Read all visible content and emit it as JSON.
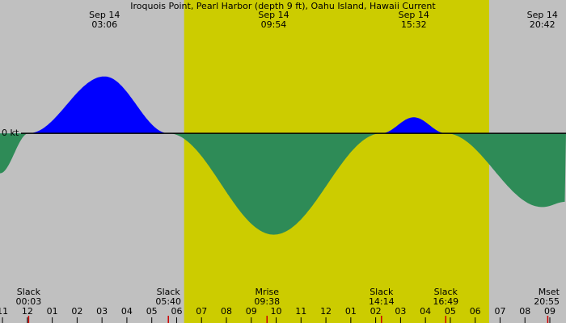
{
  "title": "Iroquois Point, Pearl Harbor (depth 9 ft), Oahu Island, Hawaii Current",
  "chart_data": {
    "type": "area",
    "zero_label": "0 kt",
    "xlim": [
      -1.1,
      21.65
    ],
    "ylim": [
      -1.68,
      1.5
    ],
    "edge_values": [
      -0.45,
      -0.77
    ],
    "daylight": [
      6.3,
      18.56
    ],
    "colors": {
      "background": "#c0c0c0",
      "daylight": "#cccc00",
      "flood": "#0000ff",
      "ebb": "#2e8b57",
      "event_tick": "#cc0000"
    },
    "peaks": [
      {
        "date": "Sep 14",
        "time": "03:06",
        "value": 0.64
      },
      {
        "date": "Sep 14",
        "time": "09:54",
        "value": -1.14
      },
      {
        "date": "Sep 14",
        "time": "15:32",
        "value": 0.18
      },
      {
        "date": "Sep 14",
        "time": "20:42",
        "value": -0.83
      }
    ],
    "slacks": [
      {
        "name": "Slack",
        "time": "00:03",
        "value": 0
      },
      {
        "name": "Slack",
        "time": "05:40",
        "value": 0
      },
      {
        "name": "Slack",
        "time": "14:14",
        "value": 0
      },
      {
        "name": "Slack",
        "time": "16:49",
        "value": 0
      }
    ],
    "moon": [
      {
        "name": "Mrise",
        "time": "09:38"
      },
      {
        "name": "Mset",
        "time": "20:55"
      }
    ],
    "xticks": [
      {
        "value": -1,
        "label": "11"
      },
      {
        "value": 0,
        "label": "12"
      },
      {
        "value": 1,
        "label": "01"
      },
      {
        "value": 2,
        "label": "02"
      },
      {
        "value": 3,
        "label": "03"
      },
      {
        "value": 4,
        "label": "04"
      },
      {
        "value": 5,
        "label": "05"
      },
      {
        "value": 6,
        "label": "06"
      },
      {
        "value": 7,
        "label": "07"
      },
      {
        "value": 8,
        "label": "08"
      },
      {
        "value": 9,
        "label": "09"
      },
      {
        "value": 10,
        "label": "10"
      },
      {
        "value": 11,
        "label": "11"
      },
      {
        "value": 12,
        "label": "12"
      },
      {
        "value": 13,
        "label": "01"
      },
      {
        "value": 14,
        "label": "02"
      },
      {
        "value": 15,
        "label": "03"
      },
      {
        "value": 16,
        "label": "04"
      },
      {
        "value": 17,
        "label": "05"
      },
      {
        "value": 18,
        "label": "06"
      },
      {
        "value": 19,
        "label": "07"
      },
      {
        "value": 20,
        "label": "08"
      },
      {
        "value": 21,
        "label": "09"
      }
    ]
  }
}
